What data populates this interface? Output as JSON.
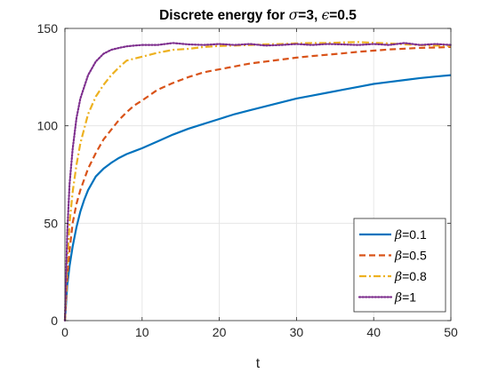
{
  "chart_data": {
    "type": "line",
    "title_prefix": "Discrete energy for ",
    "title_sym1": "σ",
    "title_mid": "=3, ",
    "title_sym2": "ϵ",
    "title_suffix": "=0.5",
    "xlabel": "t",
    "ylabel": "",
    "xlim": [
      0,
      50
    ],
    "ylim": [
      0,
      150
    ],
    "xticks": [
      0,
      10,
      20,
      30,
      40,
      50
    ],
    "yticks": [
      0,
      50,
      100,
      150
    ],
    "grid": true,
    "legend_position": "bottom-right",
    "series": [
      {
        "name": "β=0.1",
        "legend_symbol": "β",
        "legend_value": "=0.1",
        "color": "#0072BD",
        "style": "solid",
        "x": [
          0,
          0.3,
          0.6,
          1,
          1.5,
          2,
          2.5,
          3,
          4,
          5,
          6,
          7,
          8,
          9,
          10,
          12,
          14,
          16,
          18,
          20,
          22,
          24,
          26,
          28,
          30,
          32,
          34,
          36,
          38,
          40,
          42,
          44,
          46,
          48,
          50
        ],
        "values": [
          0,
          18,
          28,
          38,
          48,
          56,
          62,
          67,
          74,
          78,
          81,
          83.5,
          85.5,
          87,
          88.5,
          92,
          95.5,
          98.5,
          101,
          103.5,
          106,
          108,
          110,
          112,
          114,
          115.5,
          117,
          118.5,
          120,
          121.5,
          122.5,
          123.5,
          124.5,
          125.3,
          126
        ]
      },
      {
        "name": "β=0.5",
        "legend_symbol": "β",
        "legend_value": "=0.5",
        "color": "#D95319",
        "style": "dashed",
        "x": [
          0,
          0.3,
          0.6,
          1,
          1.5,
          2,
          3,
          4,
          5,
          6,
          7,
          8,
          9,
          10,
          12,
          14,
          16,
          18,
          20,
          22,
          24,
          26,
          28,
          30,
          32,
          34,
          36,
          38,
          40,
          42,
          44,
          46,
          48,
          50
        ],
        "values": [
          0,
          22,
          36,
          50,
          60,
          67,
          78,
          86,
          93,
          98,
          103,
          107,
          110.5,
          113,
          118.5,
          122,
          125,
          127.5,
          129,
          130.5,
          132,
          133,
          134,
          135,
          135.8,
          136.5,
          137.2,
          138,
          138.6,
          139.2,
          139.6,
          140,
          140.2,
          140.5
        ]
      },
      {
        "name": "β=0.8",
        "legend_symbol": "β",
        "legend_value": "=0.8",
        "color": "#EDB120",
        "style": "dashdot",
        "x": [
          0,
          0.3,
          0.6,
          1,
          1.5,
          2,
          3,
          4,
          5,
          6,
          7,
          8,
          9,
          10,
          12,
          14,
          16,
          18,
          20,
          22,
          24,
          26,
          28,
          30,
          32,
          34,
          36,
          38,
          40,
          42,
          44,
          46,
          48,
          50
        ],
        "values": [
          0,
          30,
          50,
          66,
          80,
          91,
          106,
          115,
          121,
          126,
          130,
          133.5,
          134.5,
          135.5,
          137.5,
          139,
          139.5,
          140.5,
          141,
          141.2,
          141.5,
          141.8,
          142,
          142.3,
          142.5,
          142.5,
          142.8,
          143,
          142.6,
          142.3,
          141.8,
          141.5,
          141.2,
          141
        ]
      },
      {
        "name": "β=1",
        "legend_symbol": "β",
        "legend_value": "=1",
        "color": "#7E2F8E",
        "style": "dotted",
        "x": [
          0,
          0.3,
          0.6,
          1,
          1.5,
          2,
          3,
          4,
          5,
          6,
          7,
          8,
          9,
          10,
          12,
          14,
          16,
          18,
          20,
          22,
          24,
          26,
          28,
          30,
          32,
          34,
          36,
          38,
          40,
          42,
          44,
          46,
          48,
          50
        ],
        "values": [
          0,
          45,
          70,
          88,
          104,
          114,
          126,
          133,
          137,
          139,
          140,
          140.8,
          141.2,
          141.5,
          141.5,
          142.5,
          141.8,
          141.5,
          142,
          141.5,
          142,
          141.2,
          141.5,
          142,
          141.5,
          142,
          141.8,
          141.5,
          142,
          141.5,
          142.5,
          141.5,
          142,
          141.5
        ]
      }
    ]
  }
}
